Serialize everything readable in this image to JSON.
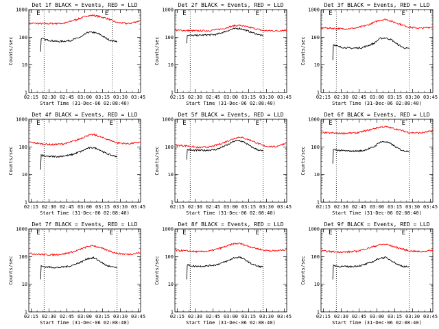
{
  "chart_data": [
    {
      "type": "line",
      "title": "Det 1f BLACK = Events, RED = LLD",
      "xlabel": "Start Time (31-Dec-06 02:08:40)",
      "ylabel": "Counts/sec",
      "xticks": [
        "02:15",
        "02:30",
        "02:45",
        "03:00",
        "03:15",
        "03:30",
        "03:45"
      ],
      "yticks": [
        "1",
        "10",
        "100",
        "1000"
      ],
      "ylim": [
        1,
        1000
      ],
      "yscale": "log",
      "xlim_min": [
        5,
        100
      ],
      "flags": [
        {
          "x": 18,
          "label": "E"
        },
        {
          "x": 76,
          "label": "E"
        }
      ],
      "vlines": [
        18,
        76
      ],
      "series": [
        {
          "color": "#ff0000",
          "x": [
            5,
            20,
            35,
            45,
            55,
            60,
            70,
            80,
            90,
            100
          ],
          "y": [
            320,
            310,
            320,
            430,
            600,
            620,
            500,
            340,
            310,
            400
          ]
        },
        {
          "color": "#000000",
          "x": [
            15,
            15.5,
            20,
            30,
            40,
            50,
            55,
            60,
            65,
            70,
            75,
            80
          ],
          "y": [
            30,
            90,
            80,
            70,
            75,
            105,
            150,
            150,
            130,
            95,
            75,
            72
          ]
        }
      ]
    },
    {
      "type": "line",
      "title": "Det 2f BLACK = Events, RED = LLD",
      "xlabel": "Start Time (31-Dec-06 02:08:40)",
      "ylabel": "Counts/sec",
      "xticks": [
        "02:15",
        "02:30",
        "02:45",
        "03:00",
        "03:15",
        "03:30",
        "03:45"
      ],
      "yticks": [
        "1",
        "10",
        "100",
        "1000"
      ],
      "ylim": [
        1,
        1000
      ],
      "yscale": "log",
      "xlim_min": [
        5,
        100
      ],
      "flags": [
        {
          "x": 18,
          "label": "E"
        },
        {
          "x": 80,
          "label": "E"
        }
      ],
      "vlines": [
        18,
        80
      ],
      "series": [
        {
          "color": "#ff0000",
          "x": [
            5,
            15,
            25,
            35,
            45,
            55,
            60,
            70,
            80,
            90,
            100
          ],
          "y": [
            180,
            175,
            170,
            175,
            200,
            260,
            270,
            220,
            175,
            170,
            180
          ]
        },
        {
          "color": "#000000",
          "x": [
            15,
            15.5,
            20,
            30,
            40,
            50,
            55,
            60,
            65,
            70,
            75,
            80
          ],
          "y": [
            60,
            120,
            115,
            120,
            125,
            175,
            200,
            210,
            180,
            150,
            130,
            110
          ]
        }
      ]
    },
    {
      "type": "line",
      "title": "Det 3f BLACK = Events, RED = LLD",
      "xlabel": "Start Time (31-Dec-06 02:08:40)",
      "ylabel": "Counts/sec",
      "xticks": [
        "02:15",
        "02:30",
        "02:45",
        "03:00",
        "03:15",
        "03:30",
        "03:45"
      ],
      "yticks": [
        "1",
        "10",
        "100",
        "1000"
      ],
      "ylim": [
        1,
        1000
      ],
      "yscale": "log",
      "xlim_min": [
        5,
        100
      ],
      "flags": [
        {
          "x": 18,
          "label": "E"
        },
        {
          "x": 80,
          "label": "E"
        }
      ],
      "vlines": [
        18,
        80
      ],
      "series": [
        {
          "color": "#ff0000",
          "x": [
            5,
            15,
            25,
            35,
            45,
            55,
            60,
            70,
            80,
            90,
            100
          ],
          "y": [
            220,
            210,
            200,
            215,
            280,
            420,
            440,
            320,
            230,
            210,
            240
          ]
        },
        {
          "color": "#000000",
          "x": [
            15,
            15.5,
            20,
            30,
            40,
            50,
            55,
            60,
            65,
            70,
            75,
            80
          ],
          "y": [
            15,
            55,
            45,
            40,
            42,
            60,
            90,
            95,
            80,
            55,
            42,
            38
          ]
        }
      ]
    },
    {
      "type": "line",
      "title": "Det 4f BLACK = Events, RED = LLD",
      "xlabel": "Start Time (31-Dec-06 02:08:40)",
      "ylabel": "Counts/sec",
      "xticks": [
        "02:15",
        "02:30",
        "02:45",
        "03:00",
        "03:15",
        "03:30",
        "03:45"
      ],
      "yticks": [
        "1",
        "10",
        "100",
        "1000"
      ],
      "ylim": [
        1,
        1000
      ],
      "yscale": "log",
      "xlim_min": [
        5,
        100
      ],
      "flags": [
        {
          "x": 18,
          "label": "E"
        },
        {
          "x": 80,
          "label": "E"
        }
      ],
      "vlines": [
        18,
        80
      ],
      "series": [
        {
          "color": "#ff0000",
          "x": [
            5,
            15,
            25,
            35,
            45,
            55,
            60,
            70,
            80,
            90,
            100
          ],
          "y": [
            150,
            130,
            120,
            130,
            170,
            260,
            280,
            200,
            140,
            130,
            150
          ]
        },
        {
          "color": "#000000",
          "x": [
            15,
            15.5,
            20,
            30,
            40,
            50,
            55,
            60,
            65,
            70,
            75,
            80
          ],
          "y": [
            15,
            50,
            45,
            45,
            50,
            70,
            90,
            95,
            80,
            60,
            50,
            45
          ]
        }
      ]
    },
    {
      "type": "line",
      "title": "Det 5f BLACK = Events, RED = LLD",
      "xlabel": "Start Time (31-Dec-06 02:08:40)",
      "ylabel": "Counts/sec",
      "xticks": [
        "02:15",
        "02:30",
        "02:45",
        "03:00",
        "03:15",
        "03:30",
        "03:45"
      ],
      "yticks": [
        "1",
        "10",
        "100",
        "1000"
      ],
      "ylim": [
        1,
        1000
      ],
      "yscale": "log",
      "xlim_min": [
        5,
        100
      ],
      "flags": [
        {
          "x": 18,
          "label": "E"
        },
        {
          "x": 80,
          "label": "E"
        }
      ],
      "vlines": [
        18,
        80
      ],
      "series": [
        {
          "color": "#ff0000",
          "x": [
            5,
            15,
            25,
            35,
            45,
            55,
            60,
            70,
            80,
            90,
            100
          ],
          "y": [
            115,
            110,
            95,
            100,
            135,
            200,
            230,
            170,
            110,
            100,
            140
          ]
        },
        {
          "color": "#000000",
          "x": [
            15,
            15.5,
            20,
            30,
            40,
            50,
            55,
            60,
            65,
            70,
            75,
            80
          ],
          "y": [
            35,
            80,
            75,
            75,
            80,
            120,
            160,
            170,
            140,
            100,
            80,
            70
          ]
        }
      ]
    },
    {
      "type": "line",
      "title": "Det 6f BLACK = Events, RED = LLD",
      "xlabel": "Start Time (31-Dec-06 02:08:40)",
      "ylabel": "Counts/sec",
      "xticks": [
        "02:15",
        "02:30",
        "02:45",
        "03:00",
        "03:15",
        "03:30",
        "03:45"
      ],
      "yticks": [
        "1",
        "10",
        "100",
        "1000"
      ],
      "ylim": [
        1,
        1000
      ],
      "yscale": "log",
      "xlim_min": [
        5,
        100
      ],
      "flags": [
        {
          "x": 18,
          "label": "E"
        },
        {
          "x": 80,
          "label": "E"
        }
      ],
      "vlines": [
        18,
        80
      ],
      "series": [
        {
          "color": "#ff0000",
          "x": [
            5,
            20,
            35,
            45,
            55,
            60,
            70,
            80,
            90,
            100
          ],
          "y": [
            330,
            310,
            320,
            400,
            520,
            540,
            430,
            330,
            320,
            380
          ]
        },
        {
          "color": "#000000",
          "x": [
            15,
            15.5,
            20,
            30,
            40,
            50,
            55,
            60,
            65,
            70,
            75,
            80
          ],
          "y": [
            25,
            80,
            75,
            70,
            72,
            100,
            150,
            155,
            125,
            90,
            72,
            70
          ]
        }
      ]
    },
    {
      "type": "line",
      "title": "Det 7f BLACK = Events, RED = LLD",
      "xlabel": "Start Time (31-Dec-06 02:08:40)",
      "ylabel": "Counts/sec",
      "xticks": [
        "02:15",
        "02:30",
        "02:45",
        "03:00",
        "03:15",
        "03:30",
        "03:45"
      ],
      "yticks": [
        "1",
        "10",
        "100",
        "1000"
      ],
      "ylim": [
        1,
        1000
      ],
      "yscale": "log",
      "xlim_min": [
        5,
        100
      ],
      "flags": [
        {
          "x": 18,
          "label": "E"
        },
        {
          "x": 80,
          "label": "E"
        }
      ],
      "vlines": [
        18,
        80
      ],
      "series": [
        {
          "color": "#ff0000",
          "x": [
            5,
            15,
            25,
            35,
            45,
            55,
            60,
            70,
            80,
            90,
            100
          ],
          "y": [
            130,
            120,
            115,
            125,
            160,
            230,
            250,
            180,
            130,
            120,
            140
          ]
        },
        {
          "color": "#000000",
          "x": [
            15,
            15.5,
            20,
            30,
            40,
            50,
            55,
            60,
            65,
            70,
            75,
            80
          ],
          "y": [
            15,
            45,
            42,
            40,
            45,
            65,
            85,
            90,
            70,
            50,
            42,
            40
          ]
        }
      ]
    },
    {
      "type": "line",
      "title": "Det 8f BLACK = Events, RED = LLD",
      "xlabel": "Start Time (31-Dec-06 02:08:40)",
      "ylabel": "Counts/sec",
      "xticks": [
        "02:15",
        "02:30",
        "02:45",
        "03:00",
        "03:15",
        "03:30",
        "03:45"
      ],
      "yticks": [
        "1",
        "10",
        "100",
        "1000"
      ],
      "ylim": [
        1,
        1000
      ],
      "yscale": "log",
      "xlim_min": [
        5,
        100
      ],
      "flags": [
        {
          "x": 18,
          "label": "E"
        },
        {
          "x": 80,
          "label": "E"
        }
      ],
      "vlines": [
        18,
        80
      ],
      "series": [
        {
          "color": "#ff0000",
          "x": [
            5,
            15,
            25,
            35,
            45,
            55,
            60,
            70,
            80,
            90,
            100
          ],
          "y": [
            170,
            160,
            150,
            160,
            210,
            290,
            300,
            220,
            170,
            160,
            180
          ]
        },
        {
          "color": "#000000",
          "x": [
            15,
            15.5,
            20,
            30,
            40,
            50,
            55,
            60,
            65,
            70,
            75,
            80
          ],
          "y": [
            15,
            50,
            45,
            45,
            50,
            70,
            90,
            95,
            75,
            55,
            45,
            42
          ]
        }
      ]
    },
    {
      "type": "line",
      "title": "Det 9f BLACK = Events, RED = LLD",
      "xlabel": "Start Time (31-Dec-06 02:08:40)",
      "ylabel": "Counts/sec",
      "xticks": [
        "02:15",
        "02:30",
        "02:45",
        "03:00",
        "03:15",
        "03:30",
        "03:45"
      ],
      "yticks": [
        "1",
        "10",
        "100",
        "1000"
      ],
      "ylim": [
        1,
        1000
      ],
      "yscale": "log",
      "xlim_min": [
        5,
        100
      ],
      "flags": [
        {
          "x": 18,
          "label": "E"
        },
        {
          "x": 80,
          "label": "E"
        }
      ],
      "vlines": [
        18,
        80
      ],
      "series": [
        {
          "color": "#ff0000",
          "x": [
            5,
            15,
            25,
            35,
            45,
            55,
            60,
            70,
            80,
            90,
            100
          ],
          "y": [
            160,
            150,
            145,
            155,
            200,
            270,
            280,
            210,
            160,
            150,
            170
          ]
        },
        {
          "color": "#000000",
          "x": [
            15,
            15.5,
            20,
            30,
            40,
            50,
            55,
            60,
            65,
            70,
            75,
            80
          ],
          "y": [
            15,
            48,
            44,
            43,
            48,
            68,
            88,
            92,
            72,
            52,
            44,
            42
          ]
        }
      ]
    }
  ]
}
